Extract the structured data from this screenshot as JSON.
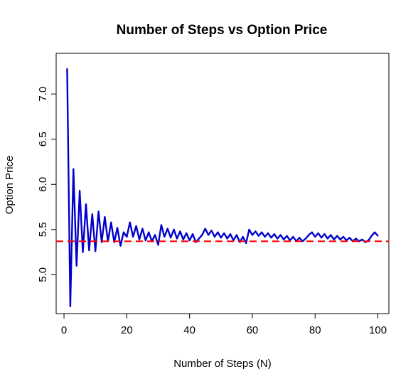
{
  "chart_data": {
    "type": "line",
    "title": "Number of Steps vs Option Price",
    "xlabel": "Number of Steps (N)",
    "ylabel": "Option Price",
    "xlim": [
      -2.5,
      103.5
    ],
    "ylim": [
      4.57,
      7.45
    ],
    "x_ticks": [
      0,
      20,
      40,
      60,
      80,
      100
    ],
    "x_tick_labels": [
      "0",
      "20",
      "40",
      "60",
      "80",
      "100"
    ],
    "y_ticks": [
      5.0,
      5.5,
      6.0,
      6.5,
      7.0
    ],
    "y_tick_labels": [
      "5.0",
      "5.5",
      "6.0",
      "6.5",
      "7.0"
    ],
    "grid": false,
    "legend": "none",
    "colors": {
      "series": "#0000cd",
      "reference": "#ff0000",
      "frame": "#000000"
    },
    "series": [
      {
        "x": [
          1,
          2,
          3,
          4,
          5,
          6,
          7,
          8,
          9,
          10,
          11,
          12,
          13,
          14,
          15,
          16,
          17,
          18,
          19,
          20,
          21,
          22,
          23,
          24,
          25,
          26,
          27,
          28,
          29,
          30,
          31,
          32,
          33,
          34,
          35,
          36,
          37,
          38,
          39,
          40,
          41,
          42,
          43,
          44,
          45,
          46,
          47,
          48,
          49,
          50,
          51,
          52,
          53,
          54,
          55,
          56,
          57,
          58,
          59,
          60,
          61,
          62,
          63,
          64,
          65,
          66,
          67,
          68,
          69,
          70,
          71,
          72,
          73,
          74,
          75,
          76,
          77,
          78,
          79,
          80,
          81,
          82,
          83,
          84,
          85,
          86,
          87,
          88,
          89,
          90,
          91,
          92,
          93,
          94,
          95,
          96,
          97,
          98,
          99,
          100
        ],
        "values": [
          7.28,
          4.65,
          6.17,
          5.1,
          5.93,
          5.25,
          5.78,
          5.27,
          5.67,
          5.26,
          5.7,
          5.36,
          5.64,
          5.37,
          5.58,
          5.36,
          5.52,
          5.32,
          5.47,
          5.42,
          5.58,
          5.42,
          5.54,
          5.39,
          5.51,
          5.38,
          5.47,
          5.37,
          5.44,
          5.33,
          5.55,
          5.42,
          5.51,
          5.41,
          5.5,
          5.4,
          5.48,
          5.39,
          5.46,
          5.38,
          5.45,
          5.36,
          5.4,
          5.44,
          5.51,
          5.44,
          5.49,
          5.42,
          5.47,
          5.41,
          5.46,
          5.4,
          5.45,
          5.38,
          5.44,
          5.36,
          5.42,
          5.35,
          5.5,
          5.44,
          5.48,
          5.43,
          5.47,
          5.42,
          5.46,
          5.41,
          5.45,
          5.4,
          5.44,
          5.39,
          5.43,
          5.38,
          5.42,
          5.37,
          5.41,
          5.37,
          5.4,
          5.44,
          5.47,
          5.42,
          5.46,
          5.41,
          5.45,
          5.4,
          5.44,
          5.39,
          5.43,
          5.39,
          5.42,
          5.38,
          5.41,
          5.37,
          5.4,
          5.37,
          5.39,
          5.36,
          5.38,
          5.43,
          5.47,
          5.43
        ]
      }
    ],
    "reference_line": {
      "type": "horizontal",
      "y": 5.37,
      "style": "dashed"
    }
  }
}
